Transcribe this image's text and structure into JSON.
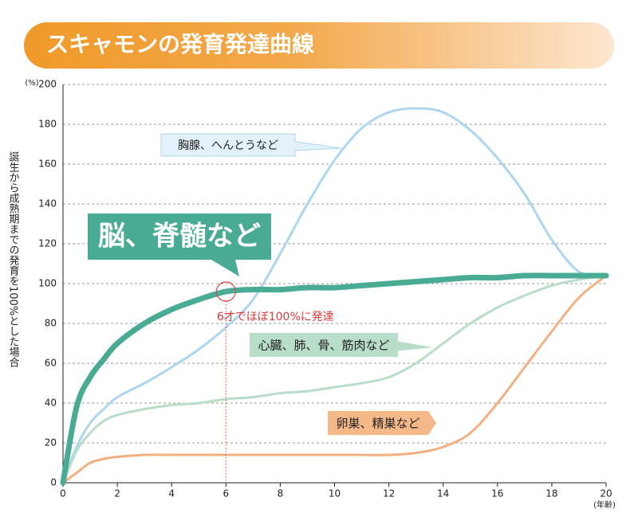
{
  "chart_data": {
    "type": "line",
    "title": "スキャモンの発育発達曲線",
    "y_label": "誕生から成熟期までの発育を100%とした場合",
    "y_unit": "(%)",
    "x_unit": "(年齢)",
    "annotation": "6才でほぼ100%に発達",
    "x": [
      0,
      0.5,
      1,
      1.5,
      2,
      3,
      4,
      5,
      6,
      7,
      8,
      9,
      10,
      11,
      12,
      13,
      14,
      15,
      16,
      17,
      18,
      19,
      20
    ],
    "series": [
      {
        "name": "脳、脊髄など",
        "color": "#4aab94",
        "values": [
          0,
          38,
          53,
          62,
          70,
          80,
          87,
          92,
          96,
          97,
          97,
          98,
          98,
          99,
          100,
          101,
          102,
          103,
          103,
          104,
          104,
          104,
          104
        ]
      },
      {
        "name": "胸腺、へんとうなど",
        "color": "#acd6ee",
        "values": [
          0,
          18,
          30,
          37,
          43,
          50,
          58,
          67,
          78,
          92,
          115,
          140,
          162,
          178,
          186,
          188,
          186,
          177,
          163,
          145,
          122,
          106,
          104
        ]
      },
      {
        "name": "心臓、肺、骨、筋肉など",
        "color": "#b8ddc8",
        "values": [
          0,
          16,
          25,
          31,
          34,
          37,
          39,
          40,
          42,
          43,
          45,
          46,
          48,
          50,
          53,
          60,
          70,
          80,
          88,
          94,
          99,
          102,
          104
        ]
      },
      {
        "name": "卵巣、精巣など",
        "color": "#f2b080",
        "values": [
          0,
          5,
          10,
          12,
          13,
          14,
          14,
          14,
          14,
          14,
          14,
          14,
          14,
          14,
          14,
          15,
          18,
          25,
          40,
          58,
          76,
          93,
          104
        ]
      }
    ],
    "xlim": [
      0,
      20
    ],
    "xticks": [
      0,
      2,
      4,
      6,
      8,
      10,
      12,
      14,
      16,
      18,
      20
    ],
    "ylim": [
      0,
      200
    ],
    "yticks": [
      0,
      20,
      40,
      60,
      80,
      100,
      120,
      140,
      160,
      180,
      200
    ],
    "grid": true
  }
}
